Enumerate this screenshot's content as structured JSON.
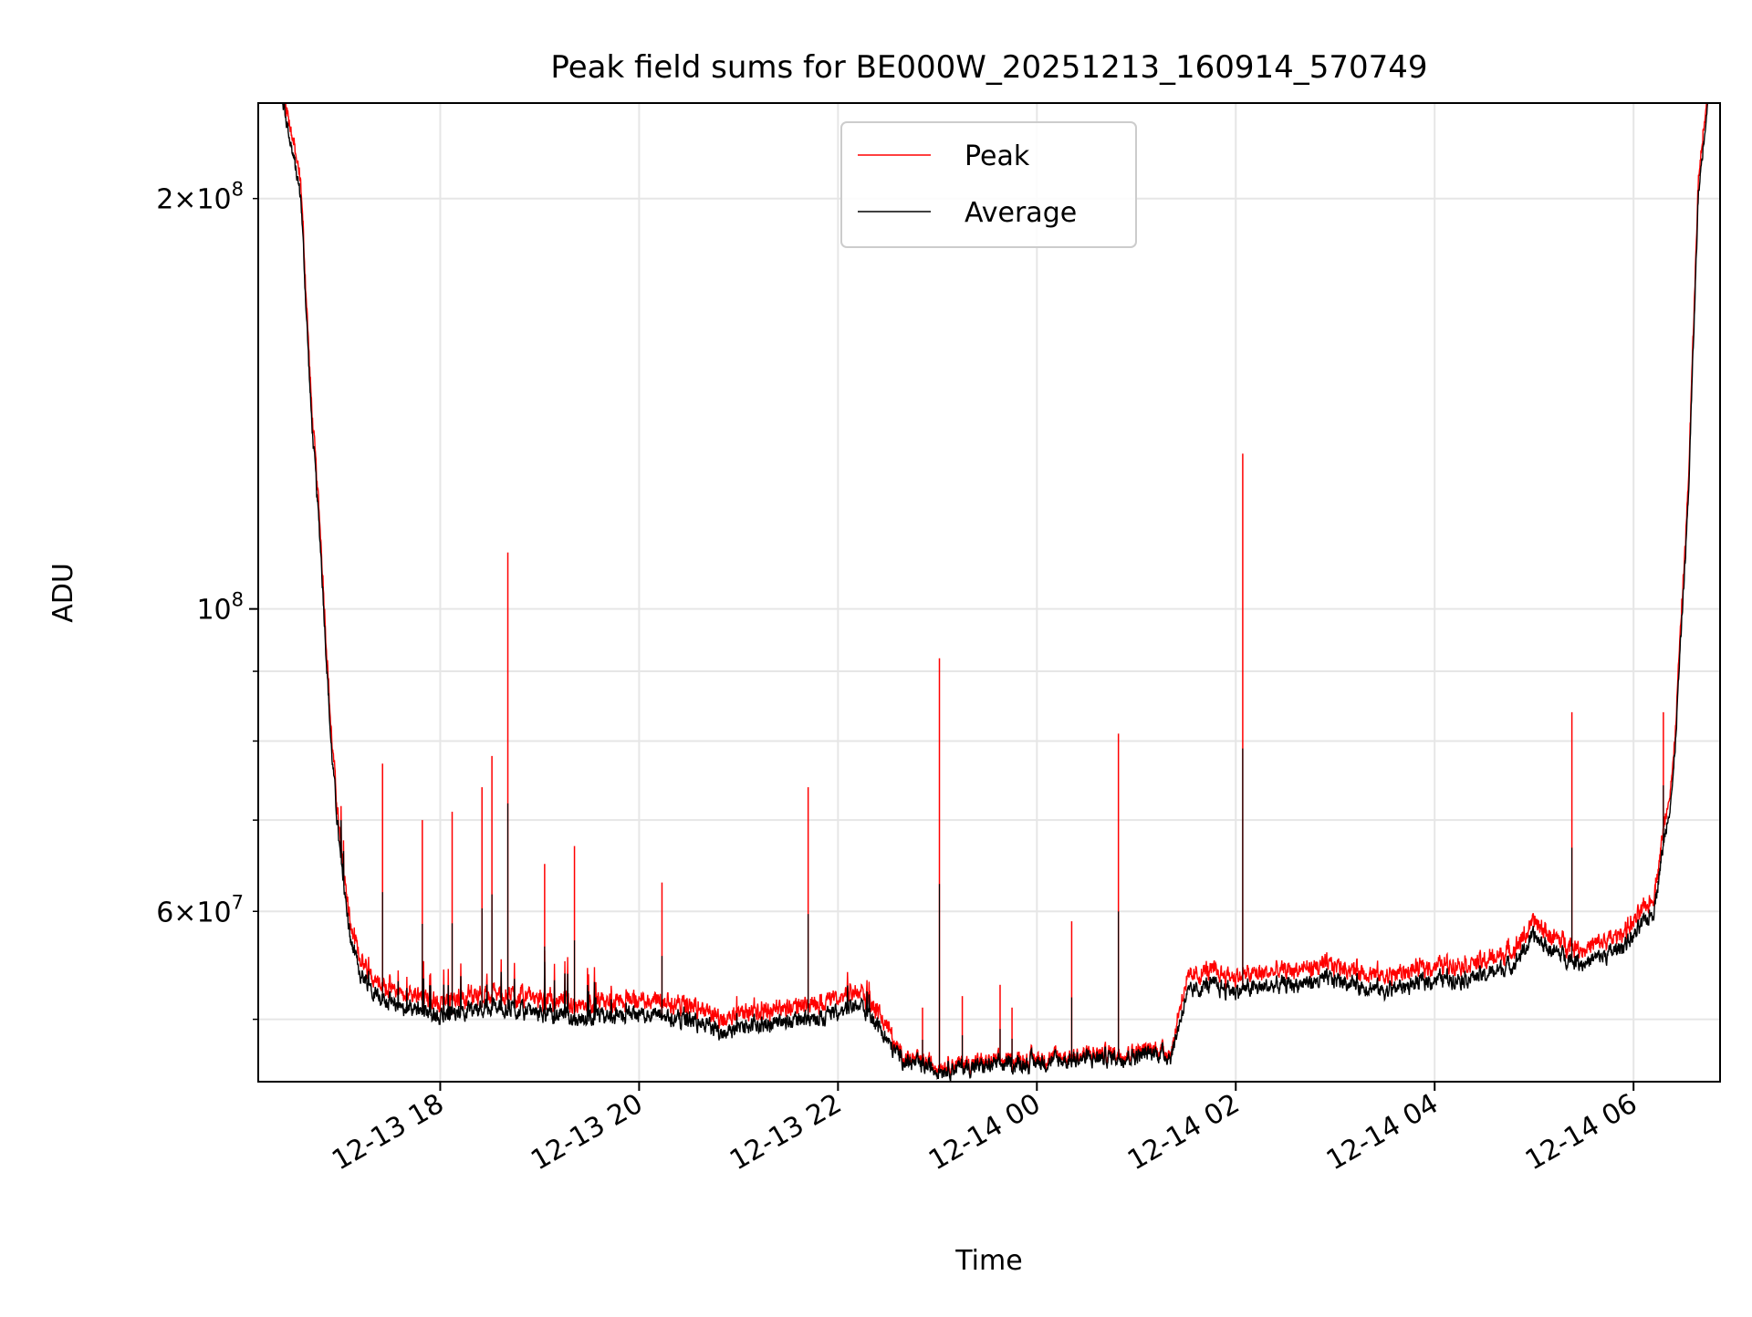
{
  "chart_data": {
    "type": "line",
    "title": "Peak field sums for BE000W_20251213_160914_570749",
    "xlabel": "Time",
    "ylabel": "ADU",
    "yscale": "log",
    "ylim": [
      45000000,
      235000000
    ],
    "xlim_hours": [
      -1.83,
      12.87
    ],
    "grid": true,
    "legend_position": "top-center",
    "colors": {
      "peak": "#ff0000",
      "average": "#000000",
      "grid": "#e6e6e6"
    },
    "x_ticks": [
      {
        "hours": 0,
        "label": "12-13 18"
      },
      {
        "hours": 2,
        "label": "12-13 20"
      },
      {
        "hours": 4,
        "label": "12-13 22"
      },
      {
        "hours": 6,
        "label": "12-14 00"
      },
      {
        "hours": 8,
        "label": "12-14 02"
      },
      {
        "hours": 10,
        "label": "12-14 04"
      },
      {
        "hours": 12,
        "label": "12-14 06"
      }
    ],
    "y_ticks_major": [
      {
        "value": 100000000,
        "base": "10",
        "exp": "8"
      }
    ],
    "y_ticks_minor_labeled": [
      {
        "value": 60000000,
        "mant": "6",
        "base": "10",
        "exp": "7"
      },
      {
        "value": 200000000,
        "mant": "2",
        "base": "10",
        "exp": "8"
      }
    ],
    "y_ticks_minor_unlabeled": [
      50000000,
      70000000,
      80000000,
      90000000
    ],
    "series": [
      {
        "name": "Peak",
        "color": "#ff0000"
      },
      {
        "name": "Average",
        "color": "#000000"
      }
    ],
    "average_baseline": {
      "x_hours": [
        -1.8,
        -1.6,
        -1.4,
        -1.3,
        -1.2,
        -1.1,
        -1.0,
        -0.9,
        -0.8,
        -0.6,
        -0.4,
        -0.2,
        0.0,
        0.3,
        0.6,
        1.0,
        1.5,
        2.0,
        2.5,
        2.8,
        3.2,
        3.6,
        4.0,
        4.2,
        4.4,
        4.55,
        4.7,
        4.85,
        5.0,
        5.5,
        6.0,
        6.5,
        7.0,
        7.2,
        7.35,
        7.5,
        7.7,
        8.0,
        8.5,
        9.0,
        9.5,
        10.0,
        10.5,
        10.8,
        11.0,
        11.2,
        11.5,
        11.8,
        12.0,
        12.2,
        12.4,
        12.55,
        12.65,
        12.75,
        12.87
      ],
      "values": [
        240000000,
        240000000,
        200000000,
        140000000,
        110000000,
        80000000,
        65000000,
        57000000,
        54000000,
        52000000,
        51000000,
        51000000,
        50000000,
        51000000,
        51000000,
        50500000,
        50000000,
        50500000,
        50000000,
        49000000,
        49500000,
        50000000,
        50500000,
        51500000,
        49500000,
        47500000,
        46500000,
        46200000,
        46000000,
        46200000,
        46500000,
        46800000,
        47000000,
        47300000,
        47000000,
        52000000,
        53000000,
        52500000,
        53000000,
        53500000,
        52500000,
        53500000,
        53800000,
        55000000,
        57500000,
        56000000,
        55000000,
        56000000,
        57500000,
        60000000,
        75000000,
        120000000,
        200000000,
        240000000,
        240000000
      ]
    },
    "peak_spikes": [
      {
        "hour": -0.58,
        "value": 77000000
      },
      {
        "hour": -0.18,
        "value": 70000000
      },
      {
        "hour": 0.12,
        "value": 71000000
      },
      {
        "hour": 0.42,
        "value": 74000000
      },
      {
        "hour": 0.52,
        "value": 78000000
      },
      {
        "hour": 0.68,
        "value": 110000000
      },
      {
        "hour": 1.05,
        "value": 65000000
      },
      {
        "hour": 1.35,
        "value": 67000000
      },
      {
        "hour": 2.23,
        "value": 63000000
      },
      {
        "hour": 3.7,
        "value": 74000000
      },
      {
        "hour": 4.85,
        "value": 51000000
      },
      {
        "hour": 5.02,
        "value": 92000000
      },
      {
        "hour": 5.25,
        "value": 52000000
      },
      {
        "hour": 5.63,
        "value": 53000000
      },
      {
        "hour": 5.75,
        "value": 51000000
      },
      {
        "hour": 6.35,
        "value": 59000000
      },
      {
        "hour": 6.82,
        "value": 81000000
      },
      {
        "hour": 8.07,
        "value": 130000000
      },
      {
        "hour": 11.38,
        "value": 84000000
      },
      {
        "hour": 12.3,
        "value": 84000000
      }
    ]
  },
  "legend": {
    "items": [
      {
        "label": "Peak",
        "color": "#ff0000"
      },
      {
        "label": "Average",
        "color": "#000000"
      }
    ]
  }
}
